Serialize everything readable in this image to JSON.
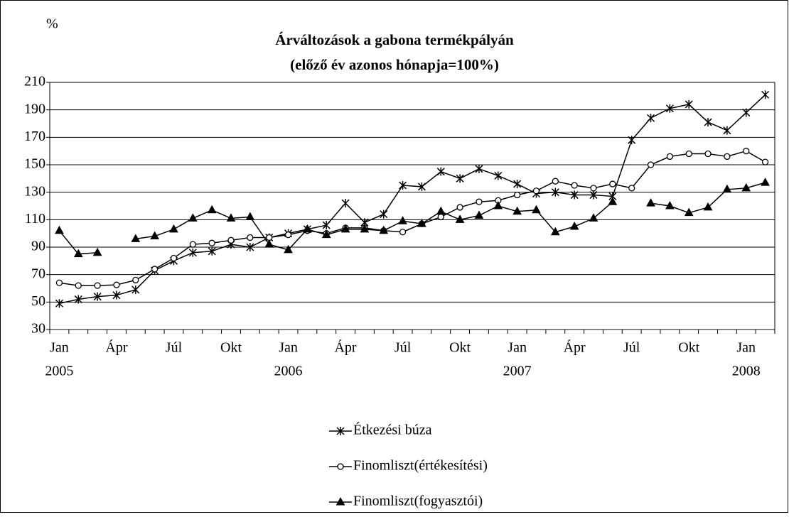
{
  "chart_data": {
    "type": "line",
    "title": "Árváltozások a gabona termékpályán",
    "subtitle": "(előző év azonos hónapja=100%)",
    "y_label": "%",
    "categories": [
      [
        "Jan",
        "2005"
      ],
      null,
      null,
      "Ápr",
      null,
      null,
      "Júl",
      null,
      null,
      "Okt",
      null,
      null,
      [
        "Jan",
        "2006"
      ],
      null,
      null,
      "Ápr",
      null,
      null,
      "Júl",
      null,
      null,
      "Okt",
      null,
      null,
      [
        "Jan",
        "2007"
      ],
      null,
      null,
      "Ápr",
      null,
      null,
      "Júl",
      null,
      null,
      "Okt",
      null,
      null,
      [
        "Jan",
        "2008"
      ],
      null
    ],
    "ylim": [
      30,
      210
    ],
    "yticks": [
      30,
      50,
      70,
      90,
      110,
      130,
      150,
      170,
      190,
      210
    ],
    "grid": true,
    "legend": "bottom",
    "series": [
      {
        "name": "Étkezési búza",
        "color": "#000000",
        "marker": "asterisk",
        "values": [
          49,
          52,
          54,
          55,
          59,
          73,
          80,
          86,
          87,
          92,
          90,
          97,
          100,
          103,
          106,
          122,
          108,
          114,
          135,
          134,
          145,
          140,
          147,
          142,
          136,
          129,
          130,
          128,
          128,
          127,
          168,
          184,
          191,
          194,
          181,
          175,
          188,
          201
        ]
      },
      {
        "name": "Finomliszt(értékesítési)",
        "color": "#000000",
        "marker": "circle",
        "values": [
          64,
          62,
          62,
          62.5,
          66,
          74,
          82,
          92,
          93,
          95,
          97,
          97,
          99,
          102,
          100,
          104,
          104,
          102,
          101,
          107,
          112,
          119,
          123,
          124,
          128,
          131,
          138,
          135,
          133,
          136,
          133,
          150,
          156,
          158,
          158,
          156,
          160,
          152
        ]
      },
      {
        "name": "Finomliszt(fogyasztói)",
        "color": "#000000",
        "marker": "triangle",
        "values": [
          102,
          85,
          86,
          null,
          96,
          98,
          103,
          111,
          117,
          111,
          112,
          92,
          88,
          103,
          99,
          103,
          103,
          102,
          109,
          107,
          116,
          110,
          113,
          120,
          116,
          117,
          101,
          105,
          111,
          123,
          null,
          122,
          120,
          115,
          119,
          132,
          133,
          137
        ]
      }
    ]
  }
}
